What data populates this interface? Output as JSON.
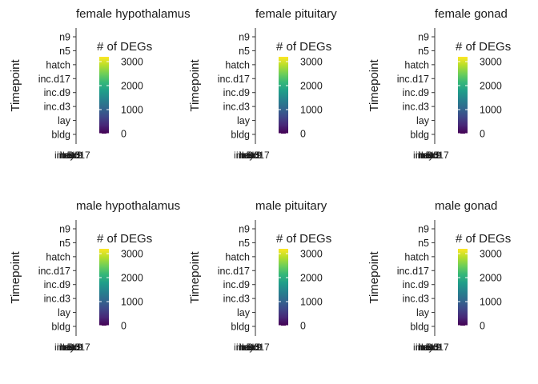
{
  "chart_data": [
    {
      "type": "heatmap",
      "title": "female hypothalamus",
      "ylabel": "Timepoint",
      "y_categories": [
        "bldg",
        "lay",
        "inc.d3",
        "inc.d9",
        "inc.d17",
        "hatch",
        "n5",
        "n9"
      ],
      "x_tick_labels": [
        "inc.d3",
        "inc.d9",
        "inc.d17",
        "hatch",
        "n5",
        "n9",
        "lay"
      ],
      "legend": {
        "title": "# of DEGs",
        "ticks": [
          0,
          1000,
          2000,
          3000
        ],
        "range": [
          0,
          3200
        ],
        "colormap": "viridis"
      },
      "values": []
    },
    {
      "type": "heatmap",
      "title": "female pituitary",
      "ylabel": "Timepoint",
      "y_categories": [
        "bldg",
        "lay",
        "inc.d3",
        "inc.d9",
        "inc.d17",
        "hatch",
        "n5",
        "n9"
      ],
      "x_tick_labels": [
        "inc.d3",
        "inc.d9",
        "inc.d17",
        "hatch",
        "n5",
        "n9",
        "lay"
      ],
      "legend": {
        "title": "# of DEGs",
        "ticks": [
          0,
          1000,
          2000,
          3000
        ],
        "range": [
          0,
          3200
        ],
        "colormap": "viridis"
      },
      "values": []
    },
    {
      "type": "heatmap",
      "title": "female gonad",
      "ylabel": "Timepoint",
      "y_categories": [
        "bldg",
        "lay",
        "inc.d3",
        "inc.d9",
        "inc.d17",
        "hatch",
        "n5",
        "n9"
      ],
      "x_tick_labels": [
        "inc.d3",
        "inc.d9",
        "inc.d17",
        "hatch",
        "n5",
        "n9",
        "lay"
      ],
      "legend": {
        "title": "# of DEGs",
        "ticks": [
          0,
          1000,
          2000,
          3000
        ],
        "range": [
          0,
          3200
        ],
        "colormap": "viridis"
      },
      "values": []
    },
    {
      "type": "heatmap",
      "title": "male hypothalamus",
      "ylabel": "Timepoint",
      "y_categories": [
        "bldg",
        "lay",
        "inc.d3",
        "inc.d9",
        "inc.d17",
        "hatch",
        "n5",
        "n9"
      ],
      "x_tick_labels": [
        "inc.d3",
        "inc.d9",
        "inc.d17",
        "hatch",
        "n5",
        "n9",
        "lay"
      ],
      "legend": {
        "title": "# of DEGs",
        "ticks": [
          0,
          1000,
          2000,
          3000
        ],
        "range": [
          0,
          3200
        ],
        "colormap": "viridis"
      },
      "values": []
    },
    {
      "type": "heatmap",
      "title": "male pituitary",
      "ylabel": "Timepoint",
      "y_categories": [
        "bldg",
        "lay",
        "inc.d3",
        "inc.d9",
        "inc.d17",
        "hatch",
        "n5",
        "n9"
      ],
      "x_tick_labels": [
        "inc.d3",
        "inc.d9",
        "inc.d17",
        "hatch",
        "n5",
        "n9",
        "lay"
      ],
      "legend": {
        "title": "# of DEGs",
        "ticks": [
          0,
          1000,
          2000,
          3000
        ],
        "range": [
          0,
          3200
        ],
        "colormap": "viridis"
      },
      "values": []
    },
    {
      "type": "heatmap",
      "title": "male gonad",
      "ylabel": "Timepoint",
      "y_categories": [
        "bldg",
        "lay",
        "inc.d3",
        "inc.d9",
        "inc.d17",
        "hatch",
        "n5",
        "n9"
      ],
      "x_tick_labels": [
        "inc.d3",
        "inc.d9",
        "inc.d17",
        "hatch",
        "n5",
        "n9",
        "lay"
      ],
      "legend": {
        "title": "# of DEGs",
        "ticks": [
          0,
          1000,
          2000,
          3000
        ],
        "range": [
          0,
          3200
        ],
        "colormap": "viridis"
      },
      "values": []
    }
  ],
  "colors": {
    "text": "#1a1a1a",
    "tick_text": "#4d4d4d",
    "axis_line": "#333333",
    "viridis": [
      "#440154",
      "#482878",
      "#3e4989",
      "#31688e",
      "#26828e",
      "#1f9e89",
      "#35b779",
      "#6ece58",
      "#b5de2b",
      "#fde725"
    ]
  }
}
